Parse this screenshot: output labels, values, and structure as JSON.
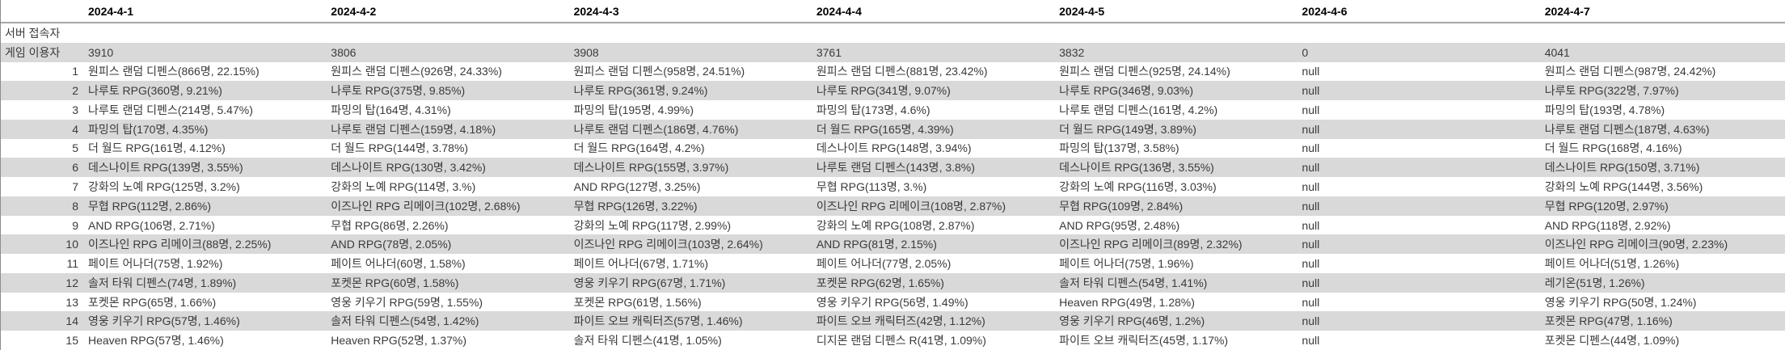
{
  "colors": {
    "band_gray": "#d9d9d9",
    "header_rule": "#a6a6a6",
    "body_text": "#3a3a3a",
    "header_text": "#000000"
  },
  "table": {
    "dates": [
      "2024-4-1",
      "2024-4-2",
      "2024-4-3",
      "2024-4-4",
      "2024-4-5",
      "2024-4-6",
      "2024-4-7"
    ],
    "server_row": {
      "label": "서버 접속자",
      "values": [
        "",
        "",
        "",
        "",
        "",
        "",
        ""
      ]
    },
    "game_users_row": {
      "label": "게임 이용자",
      "values": [
        "3910",
        "3806",
        "3908",
        "3761",
        "3832",
        "0",
        "4041"
      ]
    },
    "rankings": [
      {
        "rank": "1",
        "values": [
          "원피스 랜덤 디펜스(866명, 22.15%)",
          "원피스 랜덤 디펜스(926명, 24.33%)",
          "원피스 랜덤 디펜스(958명, 24.51%)",
          "원피스 랜덤 디펜스(881명, 23.42%)",
          "원피스 랜덤 디펜스(925명, 24.14%)",
          "null",
          "원피스 랜덤 디펜스(987명, 24.42%)"
        ]
      },
      {
        "rank": "2",
        "values": [
          "나루토 RPG(360명, 9.21%)",
          "나루토 RPG(375명, 9.85%)",
          "나루토 RPG(361명, 9.24%)",
          "나루토 RPG(341명, 9.07%)",
          "나루토 RPG(346명, 9.03%)",
          "null",
          "나루토 RPG(322명, 7.97%)"
        ]
      },
      {
        "rank": "3",
        "values": [
          "나루토 랜덤 디펜스(214명, 5.47%)",
          "파밍의 탑(164명, 4.31%)",
          "파밍의 탑(195명, 4.99%)",
          "파밍의 탑(173명, 4.6%)",
          "나루토 랜덤 디펜스(161명, 4.2%)",
          "null",
          "파밍의 탑(193명, 4.78%)"
        ]
      },
      {
        "rank": "4",
        "values": [
          "파밍의 탑(170명, 4.35%)",
          "나루토 랜덤 디펜스(159명, 4.18%)",
          "나루토 랜덤 디펜스(186명, 4.76%)",
          "더 월드 RPG(165명, 4.39%)",
          "더 월드 RPG(149명, 3.89%)",
          "null",
          "나루토 랜덤 디펜스(187명, 4.63%)"
        ]
      },
      {
        "rank": "5",
        "values": [
          "더 월드 RPG(161명, 4.12%)",
          "더 월드 RPG(144명, 3.78%)",
          "더 월드 RPG(164명, 4.2%)",
          "데스나이트 RPG(148명, 3.94%)",
          "파밍의 탑(137명, 3.58%)",
          "null",
          "더 월드 RPG(168명, 4.16%)"
        ]
      },
      {
        "rank": "6",
        "values": [
          "데스나이트 RPG(139명, 3.55%)",
          "데스나이트 RPG(130명, 3.42%)",
          "데스나이트 RPG(155명, 3.97%)",
          "나루토 랜덤 디펜스(143명, 3.8%)",
          "데스나이트 RPG(136명, 3.55%)",
          "null",
          "데스나이트 RPG(150명, 3.71%)"
        ]
      },
      {
        "rank": "7",
        "values": [
          "강화의 노예 RPG(125명, 3.2%)",
          "강화의 노예 RPG(114명, 3.%)",
          "AND RPG(127명, 3.25%)",
          "무협 RPG(113명, 3.%)",
          "강화의 노예 RPG(116명, 3.03%)",
          "null",
          "강화의 노예 RPG(144명, 3.56%)"
        ]
      },
      {
        "rank": "8",
        "values": [
          "무협 RPG(112명, 2.86%)",
          "이즈나인 RPG 리메이크(102명, 2.68%)",
          "무협 RPG(126명, 3.22%)",
          "이즈나인 RPG 리메이크(108명, 2.87%)",
          "무협 RPG(109명, 2.84%)",
          "null",
          "무협 RPG(120명, 2.97%)"
        ]
      },
      {
        "rank": "9",
        "values": [
          "AND RPG(106명, 2.71%)",
          "무협 RPG(86명, 2.26%)",
          "강화의 노예 RPG(117명, 2.99%)",
          "강화의 노예 RPG(108명, 2.87%)",
          "AND RPG(95명, 2.48%)",
          "null",
          "AND RPG(118명, 2.92%)"
        ]
      },
      {
        "rank": "10",
        "values": [
          "이즈나인 RPG 리메이크(88명, 2.25%)",
          "AND RPG(78명, 2.05%)",
          "이즈나인 RPG 리메이크(103명, 2.64%)",
          "AND RPG(81명, 2.15%)",
          "이즈나인 RPG 리메이크(89명, 2.32%)",
          "null",
          "이즈나인 RPG 리메이크(90명, 2.23%)"
        ]
      },
      {
        "rank": "11",
        "values": [
          "페이트 어나더(75명, 1.92%)",
          "페이트 어나더(60명, 1.58%)",
          "페이트 어나더(67명, 1.71%)",
          "페이트 어나더(77명, 2.05%)",
          "페이트 어나더(75명, 1.96%)",
          "null",
          "페이트 어나더(51명, 1.26%)"
        ]
      },
      {
        "rank": "12",
        "values": [
          "솔저 타워 디펜스(74명, 1.89%)",
          "포켓몬 RPG(60명, 1.58%)",
          "영웅 키우기 RPG(67명, 1.71%)",
          "포켓몬 RPG(62명, 1.65%)",
          "솔저 타워 디펜스(54명, 1.41%)",
          "null",
          "레기온(51명, 1.26%)"
        ]
      },
      {
        "rank": "13",
        "values": [
          "포켓몬 RPG(65명, 1.66%)",
          "영웅 키우기 RPG(59명, 1.55%)",
          "포켓몬 RPG(61명, 1.56%)",
          "영웅 키우기 RPG(56명, 1.49%)",
          "Heaven RPG(49명, 1.28%)",
          "null",
          "영웅 키우기 RPG(50명, 1.24%)"
        ]
      },
      {
        "rank": "14",
        "values": [
          "영웅 키우기 RPG(57명, 1.46%)",
          "솔저 타워 디펜스(54명, 1.42%)",
          "파이트 오브 캐릭터즈(57명, 1.46%)",
          "파이트 오브 캐릭터즈(42명, 1.12%)",
          "영웅 키우기 RPG(46명, 1.2%)",
          "null",
          "포켓몬 RPG(47명, 1.16%)"
        ]
      },
      {
        "rank": "15",
        "values": [
          "Heaven RPG(57명, 1.46%)",
          "Heaven RPG(52명, 1.37%)",
          "솔저 타워 디펜스(41명, 1.05%)",
          "디지몬 랜덤 디펜스 R(41명, 1.09%)",
          "파이트 오브 캐릭터즈(45명, 1.17%)",
          "null",
          "포켓몬 디펜스(44명, 1.09%)"
        ]
      }
    ]
  }
}
